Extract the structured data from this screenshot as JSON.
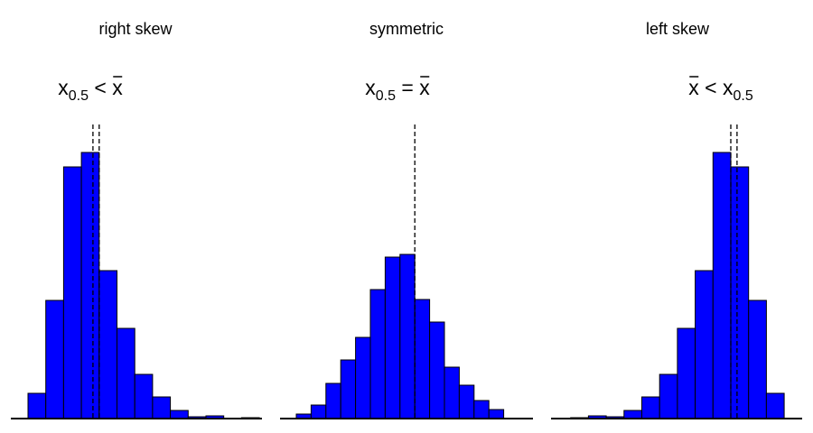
{
  "chart_data": [
    {
      "type": "bar",
      "title": "right skew",
      "annotation": {
        "lhs": "x",
        "lhs_sub": "0.5",
        "op": "<",
        "rhs": "x",
        "rhs_overline": true,
        "rhs_sub": ""
      },
      "bar_color": "#0000ff",
      "x": [
        -0.5,
        0.5,
        1.5,
        2.5,
        3.5,
        4.5,
        5.5,
        6.5,
        7.5,
        8.5,
        9.5,
        10.5,
        11.5,
        12.5
      ],
      "bin_width": 1,
      "values": [
        28,
        131,
        279,
        295,
        164,
        100,
        49,
        24,
        9,
        2,
        3,
        0,
        1,
        0
      ],
      "ylim": [
        0,
        295
      ],
      "median": 3.15,
      "mean": 3.5
    },
    {
      "type": "bar",
      "title": "symmetric",
      "annotation": {
        "lhs": "x",
        "lhs_sub": "0.5",
        "op": "=",
        "rhs": "x",
        "rhs_overline": true,
        "rhs_sub": ""
      },
      "bar_color": "#0000ff",
      "x": [
        -0.5,
        0.5,
        1.5,
        2.5,
        3.5,
        4.5,
        5.5,
        6.5,
        7.5,
        8.5,
        9.5,
        10.5,
        11.5,
        12.5,
        13.5
      ],
      "bin_width": 1,
      "values": [
        5,
        15,
        39,
        65,
        90,
        143,
        179,
        182,
        132,
        107,
        57,
        37,
        20,
        10,
        0
      ],
      "ylim": [
        0,
        295
      ],
      "median": 7.5,
      "mean": 7.5
    },
    {
      "type": "bar",
      "title": "left skew",
      "annotation": {
        "lhs": "x",
        "lhs_overline": true,
        "lhs_sub": "",
        "op": "<",
        "rhs": "x",
        "rhs_sub": "0.5"
      },
      "bar_color": "#0000ff",
      "x": [
        -0.5,
        0.5,
        1.5,
        2.5,
        3.5,
        4.5,
        5.5,
        6.5,
        7.5,
        8.5,
        9.5,
        10.5,
        11.5,
        12.5
      ],
      "bin_width": 1,
      "values": [
        0,
        1,
        3,
        2,
        9,
        24,
        49,
        100,
        164,
        295,
        279,
        131,
        28,
        0
      ],
      "ylim": [
        0,
        295
      ],
      "median": 9.85,
      "mean": 9.5
    }
  ]
}
